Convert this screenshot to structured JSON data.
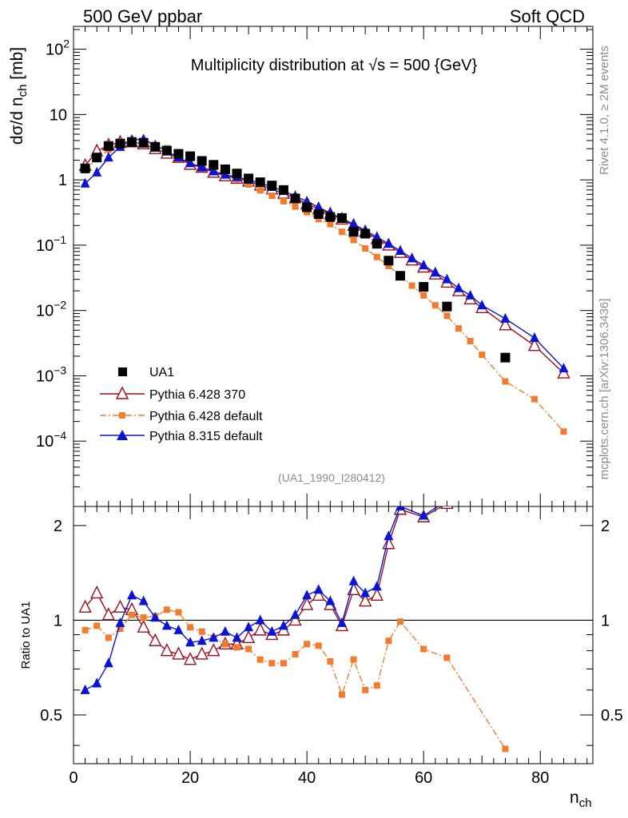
{
  "header": {
    "left": "500 GeV ppbar",
    "right": "Soft QCD"
  },
  "side_text": {
    "version": "Rivet 4.1.0, ≥ 2M events",
    "site": "mcplots.cern.ch [arXiv:1306.3436]"
  },
  "chart_data": {
    "type": "line",
    "title": "Multiplicity distribution at √s = 500 {GeV}",
    "analysis_id": "(UA1_1990_I280412)",
    "xlabel": "n",
    "xlabel_sub": "ch",
    "ylabel": "dσ/d n",
    "ylabel_sub": "ch",
    "ylabel_unit": " [mb]",
    "ratio_ylabel": "Ratio to UA1",
    "xlim": [
      0,
      89
    ],
    "ylim_log10": [
      -5,
      2.35
    ],
    "ratio_ylim": [
      0.35,
      2.3
    ],
    "x_ticks": [
      0,
      20,
      40,
      60,
      80
    ],
    "x_tick_labels": [
      "0",
      "20",
      "40",
      "60",
      "80"
    ],
    "y_ticks": [
      {
        "value": 100,
        "base": "10",
        "exp": "2"
      },
      {
        "value": 10,
        "base": "10",
        "exp": ""
      },
      {
        "value": 1,
        "base": "1",
        "exp": ""
      },
      {
        "value": 0.1,
        "base": "10",
        "exp": "−1"
      },
      {
        "value": 0.01,
        "base": "10",
        "exp": "−2"
      },
      {
        "value": 0.001,
        "base": "10",
        "exp": "−3"
      },
      {
        "value": 0.0001,
        "base": "10",
        "exp": "−4"
      }
    ],
    "ratio_ticks": [
      {
        "value": 2,
        "label": "2"
      },
      {
        "value": 1,
        "label": "1"
      },
      {
        "value": 0.5,
        "label": "0.5"
      }
    ],
    "series": [
      {
        "name": "UA1",
        "role": "data",
        "color": "#000000",
        "marker": "square",
        "x": [
          2,
          4,
          6,
          8,
          10,
          12,
          14,
          16,
          18,
          20,
          22,
          24,
          26,
          28,
          30,
          32,
          34,
          36,
          38,
          40,
          42,
          44,
          46,
          48,
          50,
          52,
          54,
          56,
          60,
          64,
          74
        ],
        "y": [
          1.5,
          2.2,
          3.3,
          3.6,
          3.8,
          3.7,
          3.2,
          2.8,
          2.5,
          2.3,
          1.95,
          1.7,
          1.45,
          1.25,
          1.05,
          0.92,
          0.82,
          0.7,
          0.52,
          0.38,
          0.3,
          0.27,
          0.26,
          0.16,
          0.15,
          0.105,
          0.058,
          0.034,
          0.023,
          0.0115,
          0.0019
        ]
      },
      {
        "name": "Pythia 6.428 370",
        "role": "mc",
        "color": "#9b0f1f",
        "marker": "open-triangle",
        "dash": "solid",
        "x": [
          2,
          4,
          6,
          8,
          10,
          12,
          14,
          16,
          18,
          20,
          22,
          24,
          26,
          28,
          30,
          32,
          34,
          36,
          38,
          40,
          42,
          44,
          46,
          48,
          50,
          52,
          54,
          56,
          58,
          60,
          62,
          64,
          66,
          68,
          70,
          74,
          79,
          84
        ],
        "y": [
          1.65,
          2.75,
          3.4,
          3.75,
          3.8,
          3.55,
          3.0,
          2.55,
          2.2,
          1.72,
          1.55,
          1.3,
          1.15,
          1.05,
          0.95,
          0.83,
          0.72,
          0.62,
          0.53,
          0.43,
          0.36,
          0.3,
          0.25,
          0.2,
          0.16,
          0.125,
          0.1,
          0.077,
          0.059,
          0.046,
          0.036,
          0.027,
          0.02,
          0.015,
          0.011,
          0.006,
          0.0029,
          0.0011
        ]
      },
      {
        "name": "Pythia 6.428 default",
        "role": "mc",
        "color": "#f27b2e",
        "marker": "filled-square",
        "dash": "dashdot",
        "x": [
          2,
          4,
          6,
          8,
          10,
          12,
          14,
          16,
          18,
          20,
          22,
          24,
          26,
          28,
          30,
          32,
          34,
          36,
          38,
          40,
          42,
          44,
          46,
          48,
          50,
          52,
          54,
          56,
          58,
          60,
          62,
          64,
          66,
          68,
          70,
          74,
          79,
          84
        ],
        "y": [
          1.4,
          2.1,
          2.9,
          3.4,
          3.7,
          3.75,
          3.4,
          3.05,
          2.65,
          2.25,
          1.85,
          1.5,
          1.2,
          1.02,
          0.85,
          0.69,
          0.57,
          0.47,
          0.39,
          0.32,
          0.25,
          0.21,
          0.16,
          0.12,
          0.089,
          0.066,
          0.048,
          0.034,
          0.024,
          0.017,
          0.012,
          0.0083,
          0.0053,
          0.0034,
          0.0021,
          0.00082,
          0.00044,
          0.00014
        ]
      },
      {
        "name": "Pythia 8.315 default",
        "role": "mc",
        "color": "#0a14d6",
        "marker": "filled-triangle",
        "dash": "solid",
        "x": [
          2,
          4,
          6,
          8,
          10,
          12,
          14,
          16,
          18,
          20,
          22,
          24,
          26,
          28,
          30,
          32,
          34,
          36,
          38,
          40,
          42,
          44,
          46,
          48,
          50,
          52,
          54,
          56,
          58,
          60,
          62,
          64,
          66,
          68,
          70,
          74,
          79,
          84
        ],
        "y": [
          0.88,
          1.3,
          2.2,
          3.2,
          4.1,
          4.2,
          3.4,
          2.75,
          2.2,
          1.8,
          1.55,
          1.35,
          1.2,
          1.1,
          1.0,
          0.9,
          0.78,
          0.68,
          0.56,
          0.47,
          0.38,
          0.31,
          0.255,
          0.21,
          0.168,
          0.133,
          0.105,
          0.082,
          0.063,
          0.049,
          0.038,
          0.03,
          0.022,
          0.017,
          0.012,
          0.0075,
          0.0038,
          0.0013
        ]
      }
    ],
    "ratio_series": [
      {
        "name": "Pythia 6.428 370",
        "color": "#9b0f1f",
        "marker": "open-triangle",
        "dash": "solid",
        "x": [
          2,
          4,
          6,
          8,
          10,
          12,
          14,
          16,
          18,
          20,
          22,
          24,
          26,
          28,
          30,
          32,
          34,
          36,
          38,
          40,
          42,
          44,
          46,
          48,
          50,
          52,
          54,
          56,
          60,
          64
        ],
        "y": [
          1.1,
          1.22,
          1.04,
          1.1,
          1.08,
          0.95,
          0.86,
          0.8,
          0.78,
          0.75,
          0.78,
          0.8,
          0.84,
          0.84,
          0.88,
          0.93,
          0.9,
          0.93,
          1.0,
          1.12,
          1.2,
          1.12,
          0.96,
          1.25,
          1.15,
          1.2,
          1.75,
          2.25,
          2.13,
          2.35
        ]
      },
      {
        "name": "Pythia 6.428 default",
        "color": "#f27b2e",
        "marker": "filled-square",
        "dash": "dashdot",
        "x": [
          2,
          4,
          6,
          8,
          10,
          12,
          14,
          16,
          18,
          20,
          22,
          24,
          26,
          28,
          30,
          32,
          34,
          36,
          38,
          40,
          42,
          44,
          46,
          48,
          50,
          52,
          54,
          56,
          60,
          64,
          74
        ],
        "y": [
          0.93,
          0.96,
          0.88,
          0.94,
          1.04,
          1.02,
          1.03,
          1.08,
          1.06,
          0.95,
          0.92,
          0.88,
          0.84,
          0.82,
          0.81,
          0.75,
          0.73,
          0.73,
          0.78,
          0.84,
          0.83,
          0.74,
          0.58,
          0.75,
          0.6,
          0.62,
          0.86,
          0.99,
          0.81,
          0.76,
          0.39
        ]
      },
      {
        "name": "Pythia 8.315 default",
        "color": "#0a14d6",
        "marker": "filled-triangle",
        "dash": "solid",
        "x": [
          2,
          4,
          6,
          8,
          10,
          12,
          14,
          16,
          18,
          20,
          22,
          24,
          26,
          28,
          30,
          32,
          34,
          36,
          38,
          40,
          42,
          44,
          46,
          48,
          50,
          52,
          54,
          56,
          60,
          64
        ],
        "y": [
          0.6,
          0.63,
          0.73,
          0.98,
          1.2,
          1.15,
          1.02,
          0.96,
          0.93,
          0.85,
          0.86,
          0.88,
          0.92,
          0.88,
          0.95,
          1.0,
          0.92,
          0.96,
          1.04,
          1.2,
          1.25,
          1.15,
          0.98,
          1.33,
          1.22,
          1.28,
          1.85,
          2.3,
          2.15,
          2.4
        ]
      }
    ]
  }
}
